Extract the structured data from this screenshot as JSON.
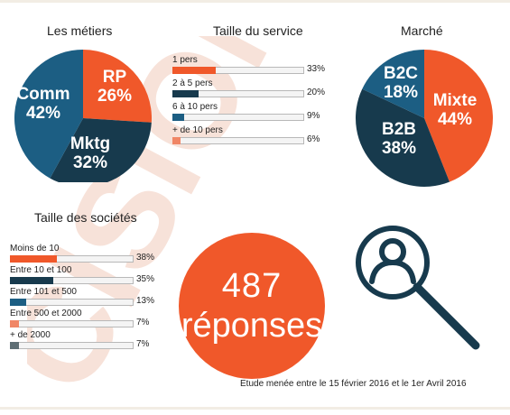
{
  "colors": {
    "orange": "#f0582a",
    "navy": "#173a4d",
    "blue": "#1c5e83",
    "salmon": "#f08666",
    "grey": "#5e6e74",
    "watermark": "#f5d9cd",
    "frame": "#f2ede4",
    "magnifier": "#173a4d"
  },
  "watermark_text": "CISION",
  "chart_data": [
    {
      "type": "pie",
      "title": "Les métiers",
      "slices": [
        {
          "label": "RP",
          "value": 26,
          "display": "26%",
          "color": "#f0582a"
        },
        {
          "label": "Mktg",
          "value": 32,
          "display": "32%",
          "color": "#173a4d"
        },
        {
          "label": "Comm",
          "value": 42,
          "display": "42%",
          "color": "#1c5e83"
        }
      ]
    },
    {
      "type": "bar",
      "title": "Taille du service",
      "categories": [
        "1 pers",
        "2 à 5 pers",
        "6 à 10 pers",
        "+ de 10 pers"
      ],
      "values": [
        33,
        20,
        9,
        6
      ],
      "display": [
        "33%",
        "20%",
        "9%",
        "6%"
      ],
      "colors": [
        "#f0582a",
        "#173a4d",
        "#1c5e83",
        "#f08666"
      ]
    },
    {
      "type": "pie",
      "title": "Marché",
      "slices": [
        {
          "label": "Mixte",
          "value": 44,
          "display": "44%",
          "color": "#f0582a"
        },
        {
          "label": "B2B",
          "value": 38,
          "display": "38%",
          "color": "#173a4d"
        },
        {
          "label": "B2C",
          "value": 18,
          "display": "18%",
          "color": "#1c5e83"
        }
      ]
    },
    {
      "type": "bar",
      "title": "Taille des sociétés",
      "categories": [
        "Moins de 10",
        "Entre 10 et 100",
        "Entre 101 et 500",
        "Entre 500 et 2000",
        "+ de 2000"
      ],
      "values": [
        38,
        35,
        13,
        7,
        7
      ],
      "display": [
        "38%",
        "35%",
        "13%",
        "7%",
        "7%"
      ],
      "colors": [
        "#f0582a",
        "#173a4d",
        "#1c5e83",
        "#f08666",
        "#5e6e74"
      ]
    }
  ],
  "summary": {
    "count": "487",
    "label": "réponses",
    "icon": "user-search-icon"
  },
  "footnote": "Etude menée entre le 15 février 2016 et le 1er Avril 2016"
}
